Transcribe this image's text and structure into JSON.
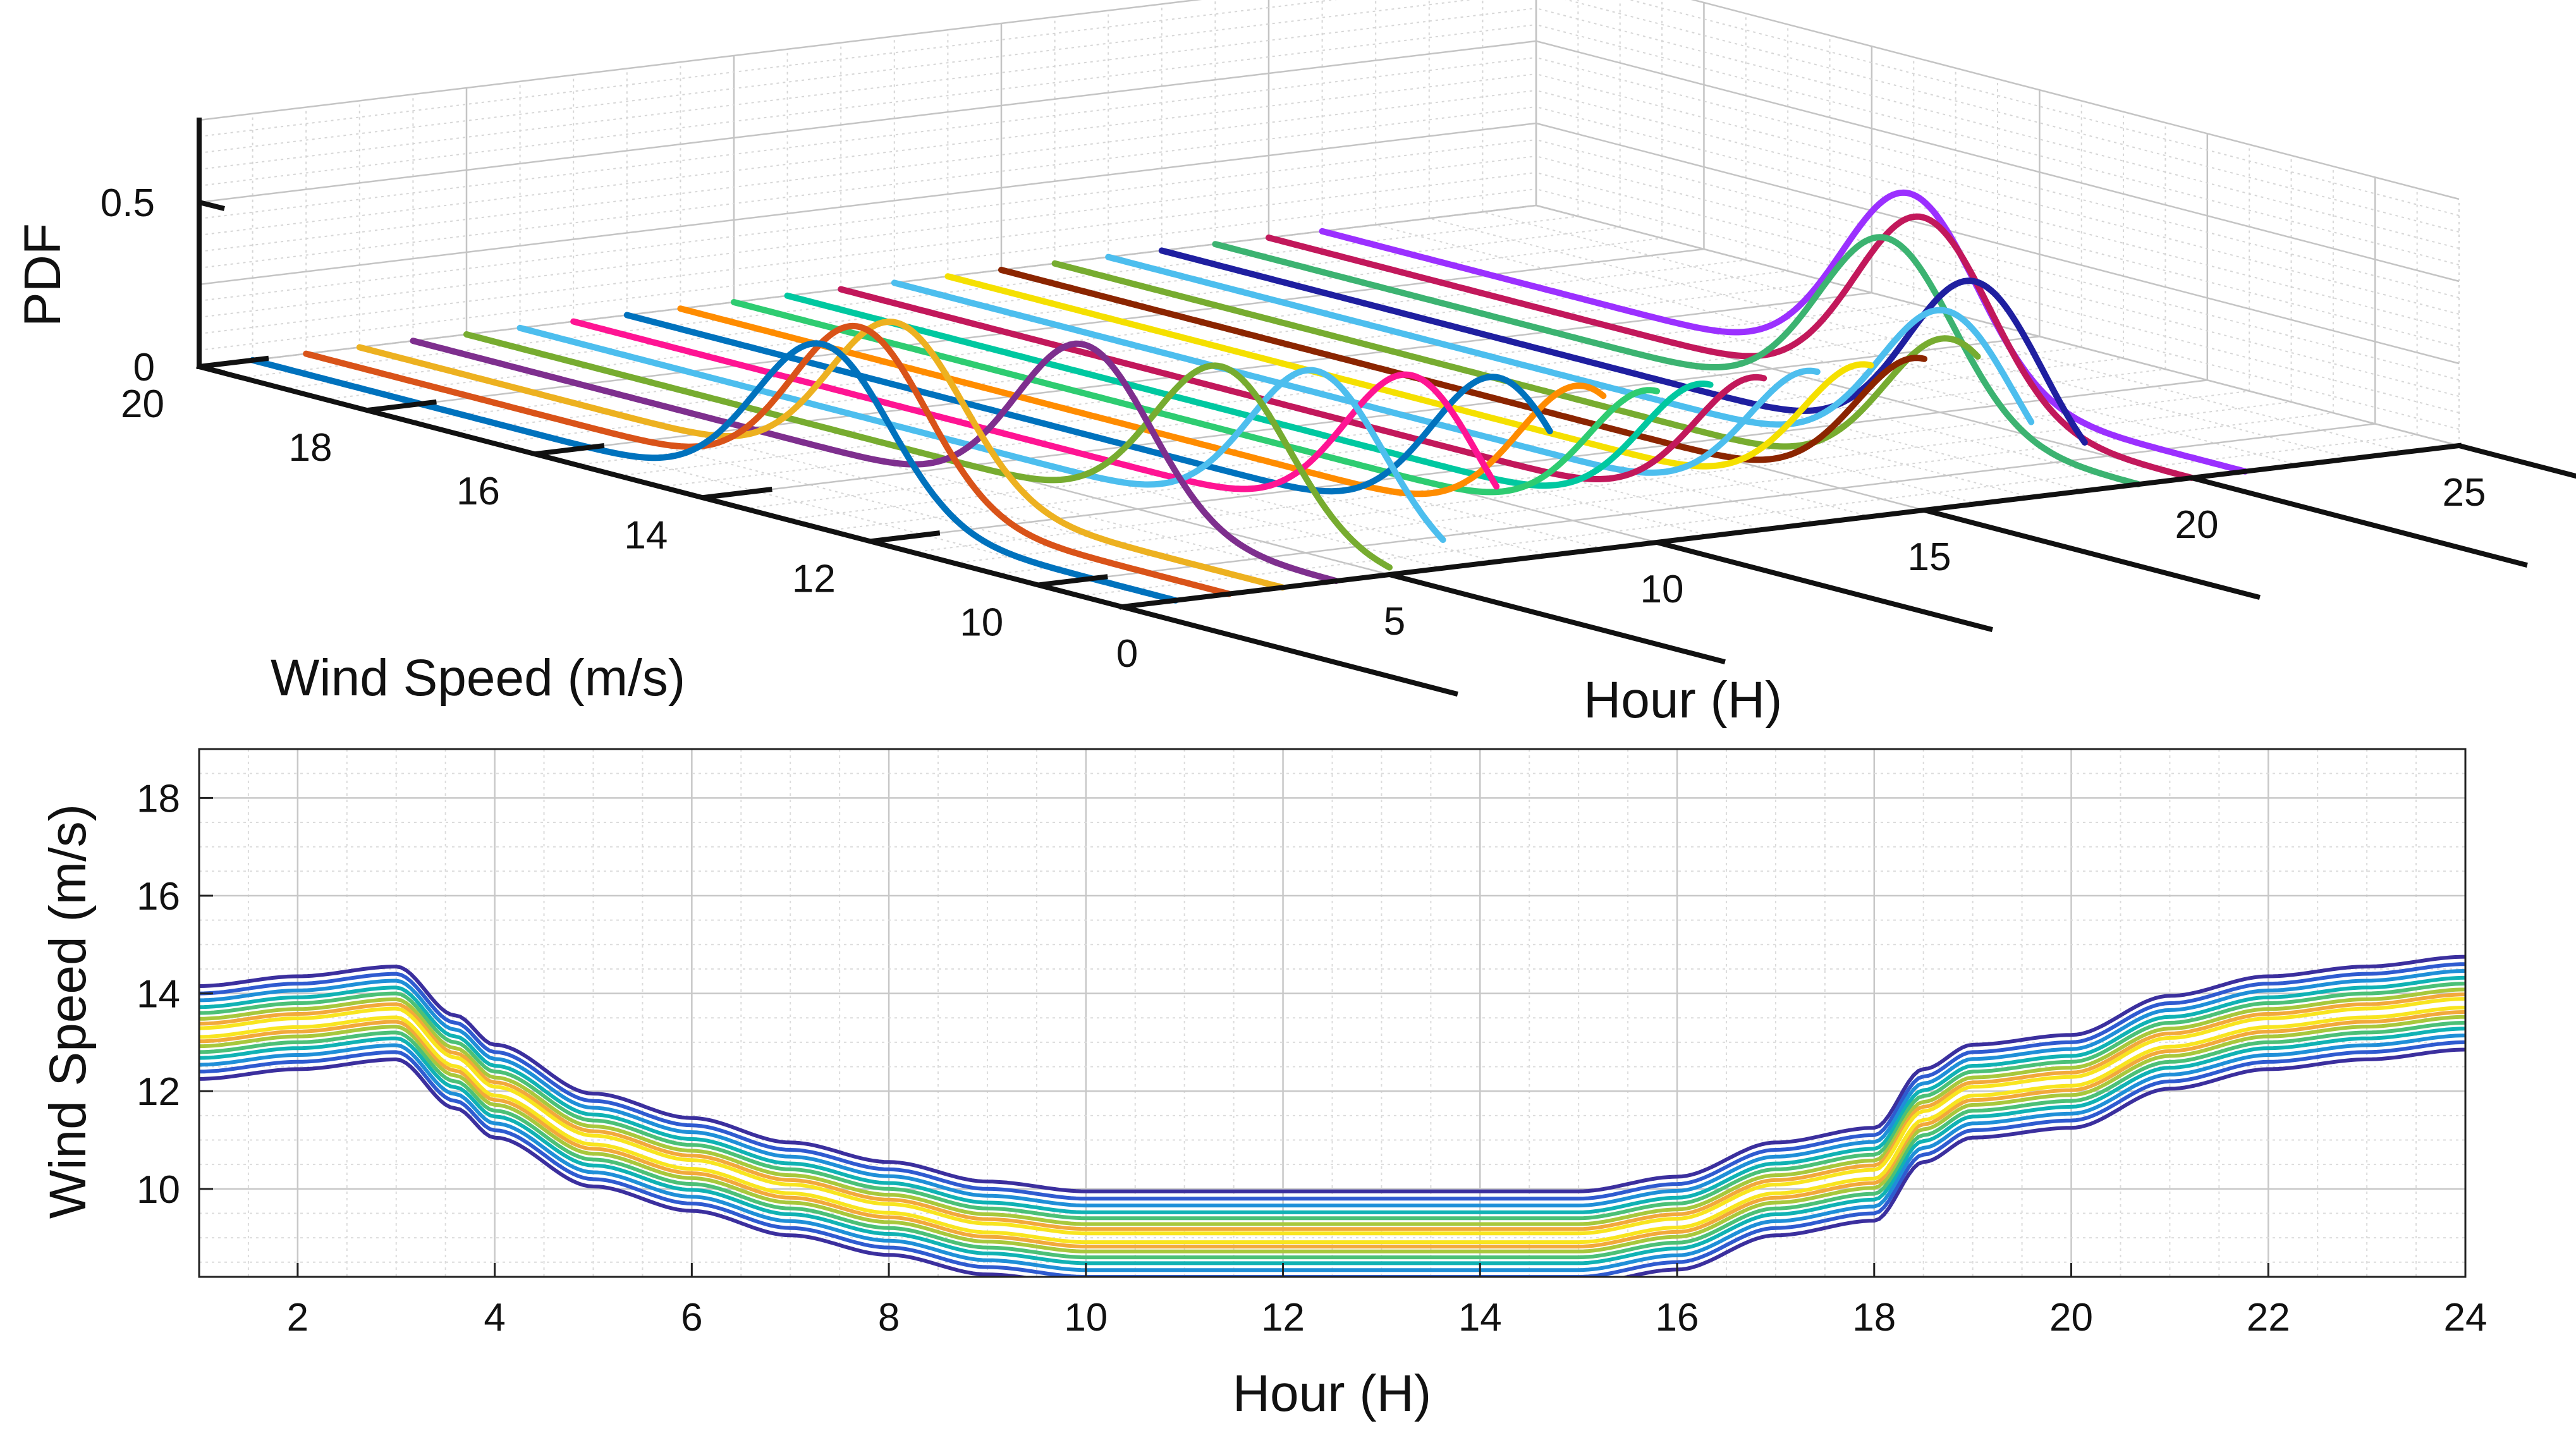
{
  "chart_data": [
    {
      "type": "line",
      "subtype": "3d-ridgeline-pdf",
      "title": "",
      "xlabel": "Hour (H)",
      "ylabel": "Wind Speed (m/s)",
      "zlabel": "PDF",
      "xlim": [
        0,
        25
      ],
      "ylim": [
        9,
        20
      ],
      "zlim": [
        0,
        0.75
      ],
      "xticks": [
        "0",
        "5",
        "10",
        "15",
        "20",
        "25"
      ],
      "yticks": [
        "10",
        "12",
        "14",
        "16",
        "18",
        "20"
      ],
      "zticks": [
        "0",
        "0.5"
      ],
      "grid": true,
      "series": [
        {
          "name": "Hour 1",
          "hour": 1,
          "mean": 13.2,
          "peak": 0.5,
          "color": "#0072BD"
        },
        {
          "name": "Hour 2",
          "hour": 2,
          "mean": 13.4,
          "peak": 0.52,
          "color": "#D95319"
        },
        {
          "name": "Hour 3",
          "hour": 3,
          "mean": 13.6,
          "peak": 0.5,
          "color": "#EDB120"
        },
        {
          "name": "Hour 4",
          "hour": 4,
          "mean": 12.0,
          "peak": 0.52,
          "color": "#7E2F8E"
        },
        {
          "name": "Hour 5",
          "hour": 5,
          "mean": 11.0,
          "peak": 0.5,
          "color": "#77AC30"
        },
        {
          "name": "Hour 6",
          "hour": 6,
          "mean": 10.5,
          "peak": 0.5,
          "color": "#4DBEEE"
        },
        {
          "name": "Hour 7",
          "hour": 7,
          "mean": 10.0,
          "peak": 0.5,
          "color": "#FF1493"
        },
        {
          "name": "Hour 8",
          "hour": 8,
          "mean": 9.6,
          "peak": 0.5,
          "color": "#0072BD"
        },
        {
          "name": "Hour 9",
          "hour": 9,
          "mean": 9.2,
          "peak": 0.48,
          "color": "#FF8C00"
        },
        {
          "name": "Hour 10",
          "hour": 10,
          "mean": 9.0,
          "peak": 0.46,
          "color": "#2ECC71"
        },
        {
          "name": "Hour 11",
          "hour": 11,
          "mean": 9.0,
          "peak": 0.46,
          "color": "#00C8A0"
        },
        {
          "name": "Hour 12",
          "hour": 12,
          "mean": 9.0,
          "peak": 0.46,
          "color": "#C2185B"
        },
        {
          "name": "Hour 13",
          "hour": 13,
          "mean": 9.0,
          "peak": 0.46,
          "color": "#4DBEEE"
        },
        {
          "name": "Hour 14",
          "hour": 14,
          "mean": 9.0,
          "peak": 0.46,
          "color": "#F5E000"
        },
        {
          "name": "Hour 15",
          "hour": 15,
          "mean": 9.0,
          "peak": 0.46,
          "color": "#8B2500"
        },
        {
          "name": "Hour 16",
          "hour": 16,
          "mean": 9.3,
          "peak": 0.48,
          "color": "#77AC30"
        },
        {
          "name": "Hour 17",
          "hour": 17,
          "mean": 10.0,
          "peak": 0.5,
          "color": "#4DBEEE"
        },
        {
          "name": "Hour 18",
          "hour": 18,
          "mean": 10.3,
          "peak": 0.55,
          "color": "#1F1FA0"
        },
        {
          "name": "Hour 19",
          "hour": 19,
          "mean": 12.0,
          "peak": 0.55,
          "color": "#3CB371"
        },
        {
          "name": "Hour 20",
          "hour": 20,
          "mean": 12.2,
          "peak": 0.58,
          "color": "#C2185B"
        },
        {
          "name": "Hour 21",
          "hour": 21,
          "mean": 13.0,
          "peak": 0.58,
          "color": "#9B30FF"
        }
      ]
    },
    {
      "type": "contour",
      "title": "",
      "xlabel": "Hour (H)",
      "ylabel": "Wind Speed (m/s)",
      "xlim": [
        1,
        24
      ],
      "ylim": [
        8.2,
        19
      ],
      "xticks": [
        "2",
        "4",
        "6",
        "8",
        "10",
        "12",
        "14",
        "16",
        "18",
        "20",
        "22",
        "24"
      ],
      "yticks": [
        "10",
        "12",
        "14",
        "16",
        "18"
      ],
      "grid": true,
      "center_line": {
        "hour": [
          1,
          2,
          3,
          3.6,
          4,
          5,
          6,
          7,
          8,
          9,
          10,
          11,
          12,
          13,
          14,
          15,
          16,
          17,
          18,
          18.5,
          19,
          20,
          21,
          22,
          23,
          24
        ],
        "wind_speed": [
          13.2,
          13.4,
          13.6,
          12.6,
          12.0,
          11.0,
          10.5,
          10.0,
          9.6,
          9.2,
          9.0,
          9.0,
          9.0,
          9.0,
          9.0,
          9.0,
          9.3,
          10.0,
          10.3,
          11.5,
          12.0,
          12.2,
          13.0,
          13.4,
          13.6,
          13.8
        ]
      },
      "levels": [
        {
          "offset": 0.95,
          "color": "#3B2F9E"
        },
        {
          "offset": 0.8,
          "color": "#2F5BD0"
        },
        {
          "offset": 0.66,
          "color": "#1F8FD8"
        },
        {
          "offset": 0.52,
          "color": "#10B2B4"
        },
        {
          "offset": 0.4,
          "color": "#4CC077"
        },
        {
          "offset": 0.28,
          "color": "#A8C83C"
        },
        {
          "offset": 0.18,
          "color": "#F2A93B"
        },
        {
          "offset": 0.09,
          "color": "#F8E51F"
        }
      ]
    }
  ]
}
